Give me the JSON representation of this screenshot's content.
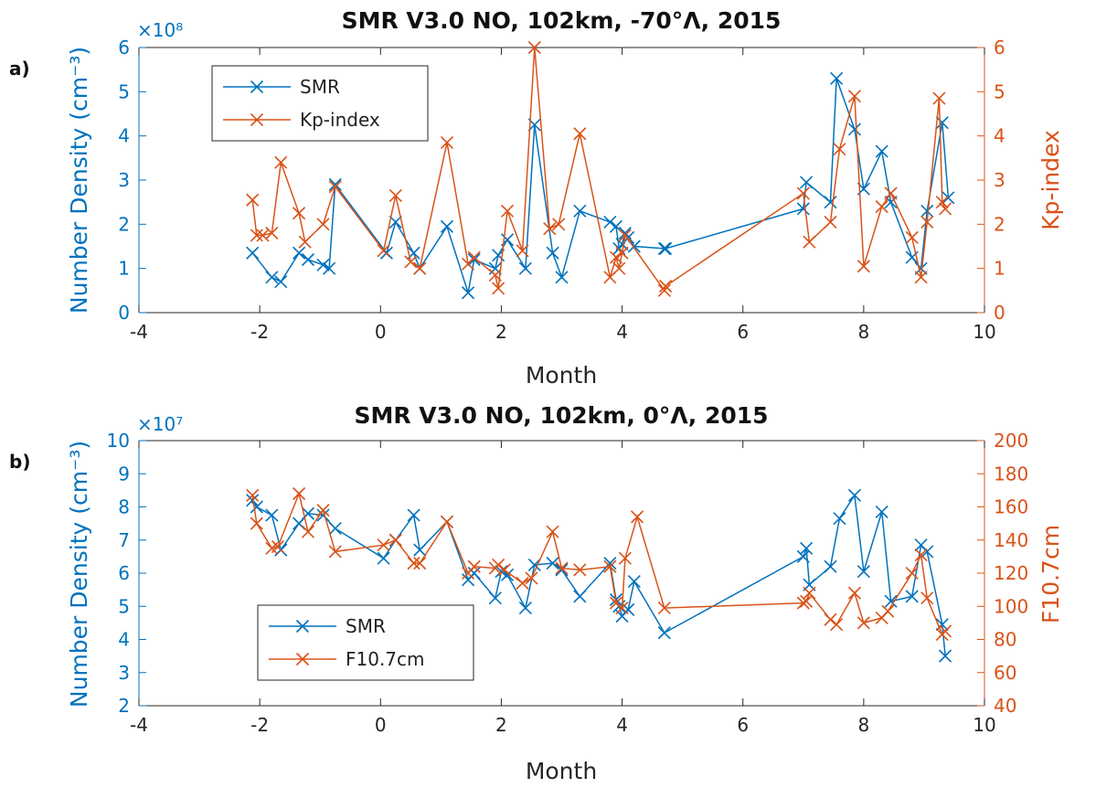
{
  "colors": {
    "left": "#0072BD",
    "right": "#D95319",
    "axis": "#262626"
  },
  "chart_data": [
    {
      "type": "line",
      "panel_label": "a)",
      "title": "SMR V3.0 NO, 102km, -70°Λ, 2015",
      "xlabel": "Month",
      "xlim": [
        -4,
        10
      ],
      "xticks": [
        -4,
        -2,
        0,
        2,
        4,
        6,
        8,
        10
      ],
      "ylabel_left": "Number Density (cm⁻³)",
      "y_exponent": "×10⁸",
      "ylim_left": [
        0,
        6
      ],
      "yticks_left": [
        0,
        1,
        2,
        3,
        4,
        5,
        6
      ],
      "ylabel_right": "Kp-index",
      "ylim_right": [
        0,
        6
      ],
      "yticks_right": [
        0,
        1,
        2,
        3,
        4,
        5,
        6
      ],
      "legend_position": "upper-left",
      "series": [
        {
          "name": "SMR",
          "axis": "left",
          "color": "#0072BD",
          "x": [
            -2.12,
            -1.8,
            -1.65,
            -1.35,
            -1.2,
            -0.95,
            -0.85,
            -0.75,
            0.1,
            0.25,
            0.55,
            0.65,
            1.1,
            1.45,
            1.55,
            1.9,
            1.95,
            2.1,
            2.4,
            2.55,
            2.85,
            3.0,
            3.3,
            3.8,
            3.9,
            3.95,
            4.0,
            4.05,
            4.1,
            4.2,
            4.7,
            4.72,
            7.0,
            7.05,
            7.45,
            7.55,
            7.85,
            8.0,
            8.3,
            8.45,
            8.8,
            8.95,
            9.05,
            9.3,
            9.4
          ],
          "values": [
            1.35,
            0.8,
            0.7,
            1.35,
            1.2,
            1.08,
            1.0,
            2.9,
            1.35,
            2.05,
            1.35,
            1.0,
            1.95,
            0.45,
            1.2,
            1.0,
            1.3,
            1.65,
            1.0,
            4.25,
            1.35,
            0.8,
            2.3,
            2.05,
            1.95,
            1.45,
            1.55,
            1.8,
            1.7,
            1.5,
            1.45,
            1.45,
            2.35,
            2.95,
            2.5,
            5.3,
            4.15,
            2.8,
            3.65,
            2.5,
            1.25,
            1.0,
            2.3,
            4.3,
            2.6
          ]
        },
        {
          "name": "Kp-index",
          "axis": "right",
          "color": "#D95319",
          "x": [
            -2.12,
            -2.05,
            -1.95,
            -1.8,
            -1.65,
            -1.35,
            -1.25,
            -0.95,
            -0.75,
            0.05,
            0.25,
            0.5,
            0.65,
            1.1,
            1.45,
            1.55,
            1.9,
            1.95,
            2.1,
            2.35,
            2.55,
            2.8,
            2.95,
            3.3,
            3.8,
            3.9,
            3.95,
            4.0,
            4.05,
            4.7,
            4.72,
            7.0,
            7.1,
            7.45,
            7.6,
            7.85,
            8.0,
            8.3,
            8.45,
            8.8,
            8.95,
            9.05,
            9.25,
            9.3,
            9.35
          ],
          "values": [
            2.55,
            1.75,
            1.75,
            1.8,
            3.4,
            2.25,
            1.6,
            2.0,
            2.85,
            1.4,
            2.65,
            1.15,
            1.0,
            3.85,
            1.1,
            1.25,
            0.85,
            0.55,
            2.3,
            1.4,
            6.0,
            1.9,
            2.0,
            4.05,
            0.8,
            1.25,
            1.0,
            1.35,
            1.75,
            0.5,
            0.6,
            2.7,
            1.6,
            2.05,
            3.7,
            4.9,
            1.05,
            2.4,
            2.7,
            1.7,
            0.8,
            2.05,
            4.85,
            2.5,
            2.35
          ]
        }
      ]
    },
    {
      "type": "line",
      "panel_label": "b)",
      "title": "SMR V3.0 NO, 102km, 0°Λ, 2015",
      "xlabel": "Month",
      "xlim": [
        -4,
        10
      ],
      "xticks": [
        -4,
        -2,
        0,
        2,
        4,
        6,
        8,
        10
      ],
      "ylabel_left": "Number Density (cm⁻³)",
      "y_exponent": "×10⁷",
      "ylim_left": [
        2,
        10
      ],
      "yticks_left": [
        2,
        3,
        4,
        5,
        6,
        7,
        8,
        9,
        10
      ],
      "ylabel_right": "F10.7cm",
      "ylim_right": [
        40,
        200
      ],
      "yticks_right": [
        40,
        60,
        80,
        100,
        120,
        140,
        160,
        180,
        200
      ],
      "legend_position": "lower-left",
      "series": [
        {
          "name": "SMR",
          "axis": "left",
          "color": "#0072BD",
          "x": [
            -2.12,
            -2.05,
            -1.8,
            -1.65,
            -1.35,
            -1.2,
            -0.95,
            -0.75,
            0.05,
            0.25,
            0.55,
            0.65,
            1.1,
            1.45,
            1.55,
            1.9,
            2.0,
            2.1,
            2.4,
            2.55,
            2.85,
            3.0,
            3.3,
            3.8,
            3.9,
            3.95,
            4.0,
            4.1,
            4.2,
            4.7,
            7.0,
            7.05,
            7.1,
            7.45,
            7.6,
            7.85,
            8.0,
            8.3,
            8.45,
            8.8,
            8.95,
            9.05,
            9.3,
            9.35
          ],
          "values": [
            8.2,
            8.0,
            7.75,
            6.7,
            7.5,
            7.8,
            7.75,
            7.35,
            6.45,
            7.0,
            7.75,
            6.7,
            7.55,
            5.8,
            6.0,
            5.25,
            6.05,
            5.95,
            4.95,
            6.25,
            6.3,
            6.1,
            5.3,
            6.3,
            5.2,
            5.0,
            4.7,
            4.9,
            5.75,
            4.2,
            6.5,
            6.75,
            5.65,
            6.2,
            7.65,
            8.35,
            6.05,
            7.85,
            5.15,
            5.3,
            6.85,
            6.65,
            4.45,
            3.5
          ]
        },
        {
          "name": "F10.7cm",
          "axis": "right",
          "color": "#D95319",
          "x": [
            -2.12,
            -2.05,
            -1.8,
            -1.7,
            -1.35,
            -1.2,
            -0.95,
            -0.75,
            0.05,
            0.25,
            0.55,
            0.65,
            1.1,
            1.45,
            1.55,
            1.9,
            1.95,
            2.05,
            2.35,
            2.5,
            2.85,
            3.0,
            3.3,
            3.8,
            3.9,
            4.0,
            4.05,
            4.25,
            4.7,
            7.0,
            7.05,
            7.1,
            7.45,
            7.55,
            7.85,
            8.0,
            8.3,
            8.4,
            8.8,
            8.95,
            9.05,
            9.3,
            9.35
          ],
          "values": [
            167,
            150,
            135,
            136,
            168,
            145,
            158,
            133,
            137,
            140,
            126,
            126,
            151,
            120,
            124,
            123,
            125,
            122,
            114,
            117,
            145,
            123,
            122,
            124,
            102,
            99,
            129,
            154,
            99,
            102,
            103,
            108,
            92,
            89,
            108,
            90,
            93,
            97,
            120,
            131,
            105,
            83,
            85
          ]
        }
      ]
    }
  ]
}
